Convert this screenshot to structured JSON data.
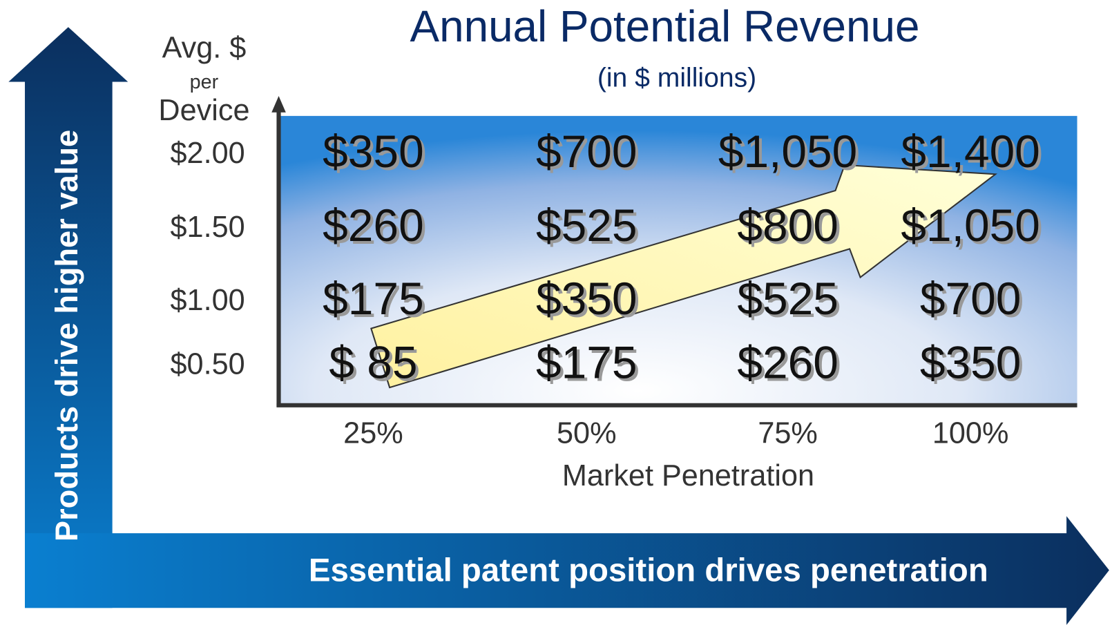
{
  "title": "Annual Potential Revenue",
  "subtitle": "(in $ millions)",
  "y_axis_label": [
    "Avg. $",
    "per",
    "Device"
  ],
  "rows": [
    {
      "label": "$2.00",
      "cells": [
        "$350",
        "$700",
        "$1,050",
        "$1,400"
      ]
    },
    {
      "label": "$1.50",
      "cells": [
        "$260",
        "$525",
        "$800",
        "$1,050"
      ]
    },
    {
      "label": "$1.00",
      "cells": [
        "$175",
        "$350",
        "$525",
        "$700"
      ]
    },
    {
      "label": "$0.50",
      "cells": [
        "$ 85",
        "$175",
        "$260",
        "$350"
      ]
    }
  ],
  "columns": [
    "25%",
    "50%",
    "75%",
    "100%"
  ],
  "x_axis_label": "Market Penetration",
  "vertical_arrow": "Products drive higher value",
  "horizontal_arrow": "Essential patent position drives penetration"
}
